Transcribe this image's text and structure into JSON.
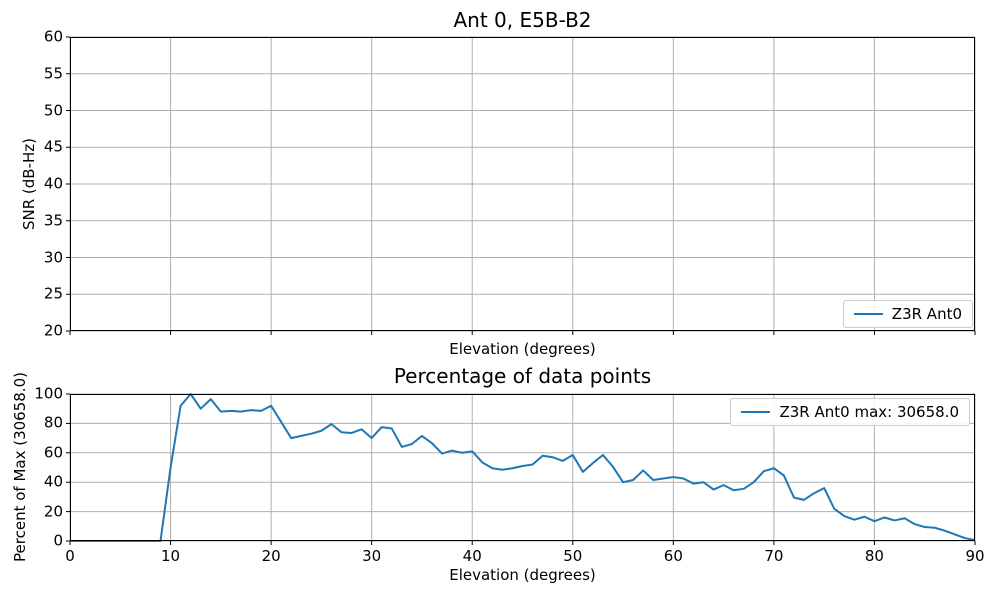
{
  "figure": {
    "background": "#ffffff",
    "line_color": "#1f77b4",
    "grid_color": "#b0b0b0",
    "spine_color": "#000000",
    "legend_border_color": "#cccccc"
  },
  "chart_data": [
    {
      "type": "line",
      "title": "Ant 0, E5B-B2",
      "xlabel": "Elevation (degrees)",
      "ylabel": "SNR (dB-Hz)",
      "xlim": [
        0,
        90
      ],
      "ylim": [
        20,
        60
      ],
      "xticks": [
        0,
        10,
        20,
        30,
        40,
        50,
        60,
        70,
        80,
        90
      ],
      "xtick_labels_visible": false,
      "yticks": [
        20,
        25,
        30,
        35,
        40,
        45,
        50,
        55,
        60
      ],
      "grid": true,
      "legend": {
        "position": "lower right",
        "entries": [
          {
            "label": "Z3R Ant0",
            "color": "#1f77b4"
          }
        ]
      },
      "series": [
        {
          "name": "Z3R Ant0",
          "x": [],
          "values": []
        }
      ]
    },
    {
      "type": "line",
      "title": "Percentage of data points",
      "xlabel": "Elevation (degrees)",
      "ylabel": "Percent of Max (30658.0)",
      "xlim": [
        0,
        90
      ],
      "ylim": [
        0,
        100
      ],
      "xticks": [
        0,
        10,
        20,
        30,
        40,
        50,
        60,
        70,
        80,
        90
      ],
      "xtick_labels_visible": true,
      "yticks": [
        0,
        20,
        40,
        60,
        80,
        100
      ],
      "grid": true,
      "legend": {
        "position": "upper right",
        "entries": [
          {
            "label": "Z3R Ant0 max: 30658.0",
            "color": "#1f77b4"
          }
        ]
      },
      "series": [
        {
          "name": "Z3R Ant0",
          "max": 30658.0,
          "x": [
            0,
            1,
            2,
            3,
            4,
            5,
            6,
            7,
            8,
            9,
            10,
            11,
            12,
            13,
            14,
            15,
            16,
            17,
            18,
            19,
            20,
            21,
            22,
            23,
            24,
            25,
            26,
            27,
            28,
            29,
            30,
            31,
            32,
            33,
            34,
            35,
            36,
            37,
            38,
            39,
            40,
            41,
            42,
            43,
            44,
            45,
            46,
            47,
            48,
            49,
            50,
            51,
            52,
            53,
            54,
            55,
            56,
            57,
            58,
            59,
            60,
            61,
            62,
            63,
            64,
            65,
            66,
            67,
            68,
            69,
            70,
            71,
            72,
            73,
            74,
            75,
            76,
            77,
            78,
            79,
            80,
            81,
            82,
            83,
            84,
            85,
            86,
            87,
            88,
            89,
            90
          ],
          "values": [
            0,
            0,
            0,
            0,
            0,
            0,
            0,
            0,
            0,
            0,
            50,
            92,
            100,
            90,
            96.5,
            88,
            88.5,
            88,
            89,
            88.5,
            92,
            81,
            70,
            71.5,
            73,
            75,
            79.5,
            74,
            73.5,
            76,
            70,
            77.5,
            76.5,
            64,
            66,
            71.5,
            66.5,
            59.5,
            61.5,
            60,
            61,
            53.5,
            49.5,
            48.5,
            49.5,
            51,
            52,
            58,
            57,
            54.5,
            58.5,
            47,
            53,
            58.5,
            50.5,
            40,
            41.5,
            48,
            41.5,
            42.5,
            43.5,
            42.5,
            39,
            40,
            35,
            38,
            34.5,
            35.5,
            40,
            47.5,
            49.5,
            44.5,
            29.5,
            28,
            32.5,
            36,
            22,
            17,
            14.5,
            16.5,
            13.5,
            16,
            14,
            15.5,
            11.5,
            9.5,
            9,
            7,
            4.5,
            2,
            0.5
          ]
        }
      ]
    }
  ]
}
